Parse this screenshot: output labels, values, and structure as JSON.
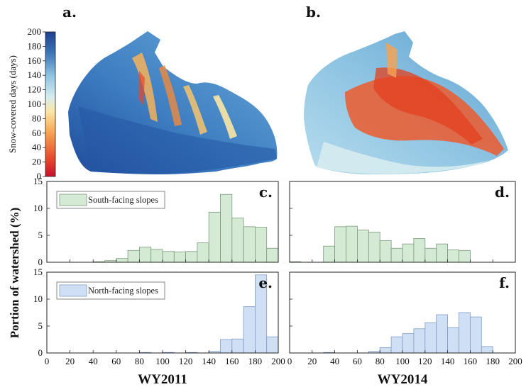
{
  "panels": {
    "a": "a.",
    "b": "b.",
    "c": "c.",
    "d": "d.",
    "e": "e.",
    "f": "f."
  },
  "colorbar": {
    "label": "Snow-covered days (days)",
    "ticks": [
      0,
      20,
      40,
      60,
      80,
      100,
      120,
      140,
      160,
      180,
      200
    ],
    "colors": [
      "#c8102e",
      "#e8462a",
      "#f7a24f",
      "#fbe6a4",
      "#d6ecf0",
      "#8cc3e1",
      "#3c77b8",
      "#1f3f8f"
    ]
  },
  "colors": {
    "south_fill": "#d4ead4",
    "south_edge": "#7a9a7a",
    "north_fill": "#cfe0f5",
    "north_edge": "#7f9bc4"
  },
  "chart_data": [
    {
      "panel": "c",
      "type": "bar",
      "xlim": [
        0,
        200
      ],
      "ylim": [
        0,
        15
      ],
      "xticks": [
        0,
        20,
        40,
        60,
        80,
        100,
        120,
        140,
        160,
        180,
        200
      ],
      "yticks": [
        0,
        5,
        10,
        15
      ],
      "legend": "South-facing slopes",
      "legend_placement": "top-left",
      "style": "south",
      "bin_width": 10,
      "bin_starts": [
        40,
        50,
        60,
        70,
        80,
        90,
        100,
        110,
        120,
        130,
        140,
        150,
        160,
        170,
        180,
        190
      ],
      "values": [
        0.1,
        0.3,
        0.7,
        2.2,
        2.8,
        2.4,
        2.0,
        1.9,
        2.0,
        3.6,
        9.3,
        12.6,
        8.2,
        6.6,
        6.5,
        2.6
      ]
    },
    {
      "panel": "d",
      "type": "bar",
      "xlim": [
        0,
        200
      ],
      "ylim": [
        0,
        15
      ],
      "xticks": [
        0,
        20,
        40,
        60,
        80,
        100,
        120,
        140,
        160,
        180,
        200
      ],
      "yticks": [
        0,
        5,
        10,
        15
      ],
      "legend": "",
      "style": "south",
      "bin_width": 10,
      "bin_starts": [
        0,
        30,
        40,
        50,
        60,
        70,
        80,
        90,
        100,
        110,
        120,
        130,
        140,
        150
      ],
      "values": [
        0.1,
        3.0,
        6.6,
        6.7,
        6.0,
        5.6,
        4.0,
        2.6,
        3.4,
        4.4,
        2.6,
        3.4,
        2.3,
        2.2
      ]
    },
    {
      "panel": "e",
      "type": "bar",
      "xlim": [
        0,
        200
      ],
      "ylim": [
        0,
        15
      ],
      "xticks": [
        0,
        20,
        40,
        60,
        80,
        100,
        120,
        140,
        160,
        180,
        200
      ],
      "yticks": [
        0,
        5,
        10,
        15
      ],
      "legend": "North-facing slopes",
      "legend_placement": "top-left",
      "style": "north",
      "bin_width": 10,
      "bin_starts": [
        80,
        100,
        120,
        140,
        150,
        160,
        170,
        180,
        190
      ],
      "values": [
        0.1,
        0.1,
        0.1,
        0.3,
        2.5,
        2.6,
        8.6,
        14.5,
        3.0
      ],
      "xlabel": "WY2011"
    },
    {
      "panel": "f",
      "type": "bar",
      "xlim": [
        0,
        200
      ],
      "ylim": [
        0,
        15
      ],
      "xticks": [
        0,
        20,
        40,
        60,
        80,
        100,
        120,
        140,
        160,
        180,
        200
      ],
      "yticks": [
        0,
        5,
        10,
        15
      ],
      "legend": "",
      "style": "north",
      "bin_width": 10,
      "bin_starts": [
        30,
        70,
        80,
        90,
        100,
        110,
        120,
        130,
        140,
        150,
        160,
        170
      ],
      "values": [
        0.1,
        0.3,
        1.0,
        3.0,
        3.6,
        4.5,
        5.6,
        7.1,
        4.7,
        7.5,
        6.7,
        1.2
      ],
      "xlabel": "WY2014"
    }
  ],
  "ylabel": "Portion of watershed (%)"
}
